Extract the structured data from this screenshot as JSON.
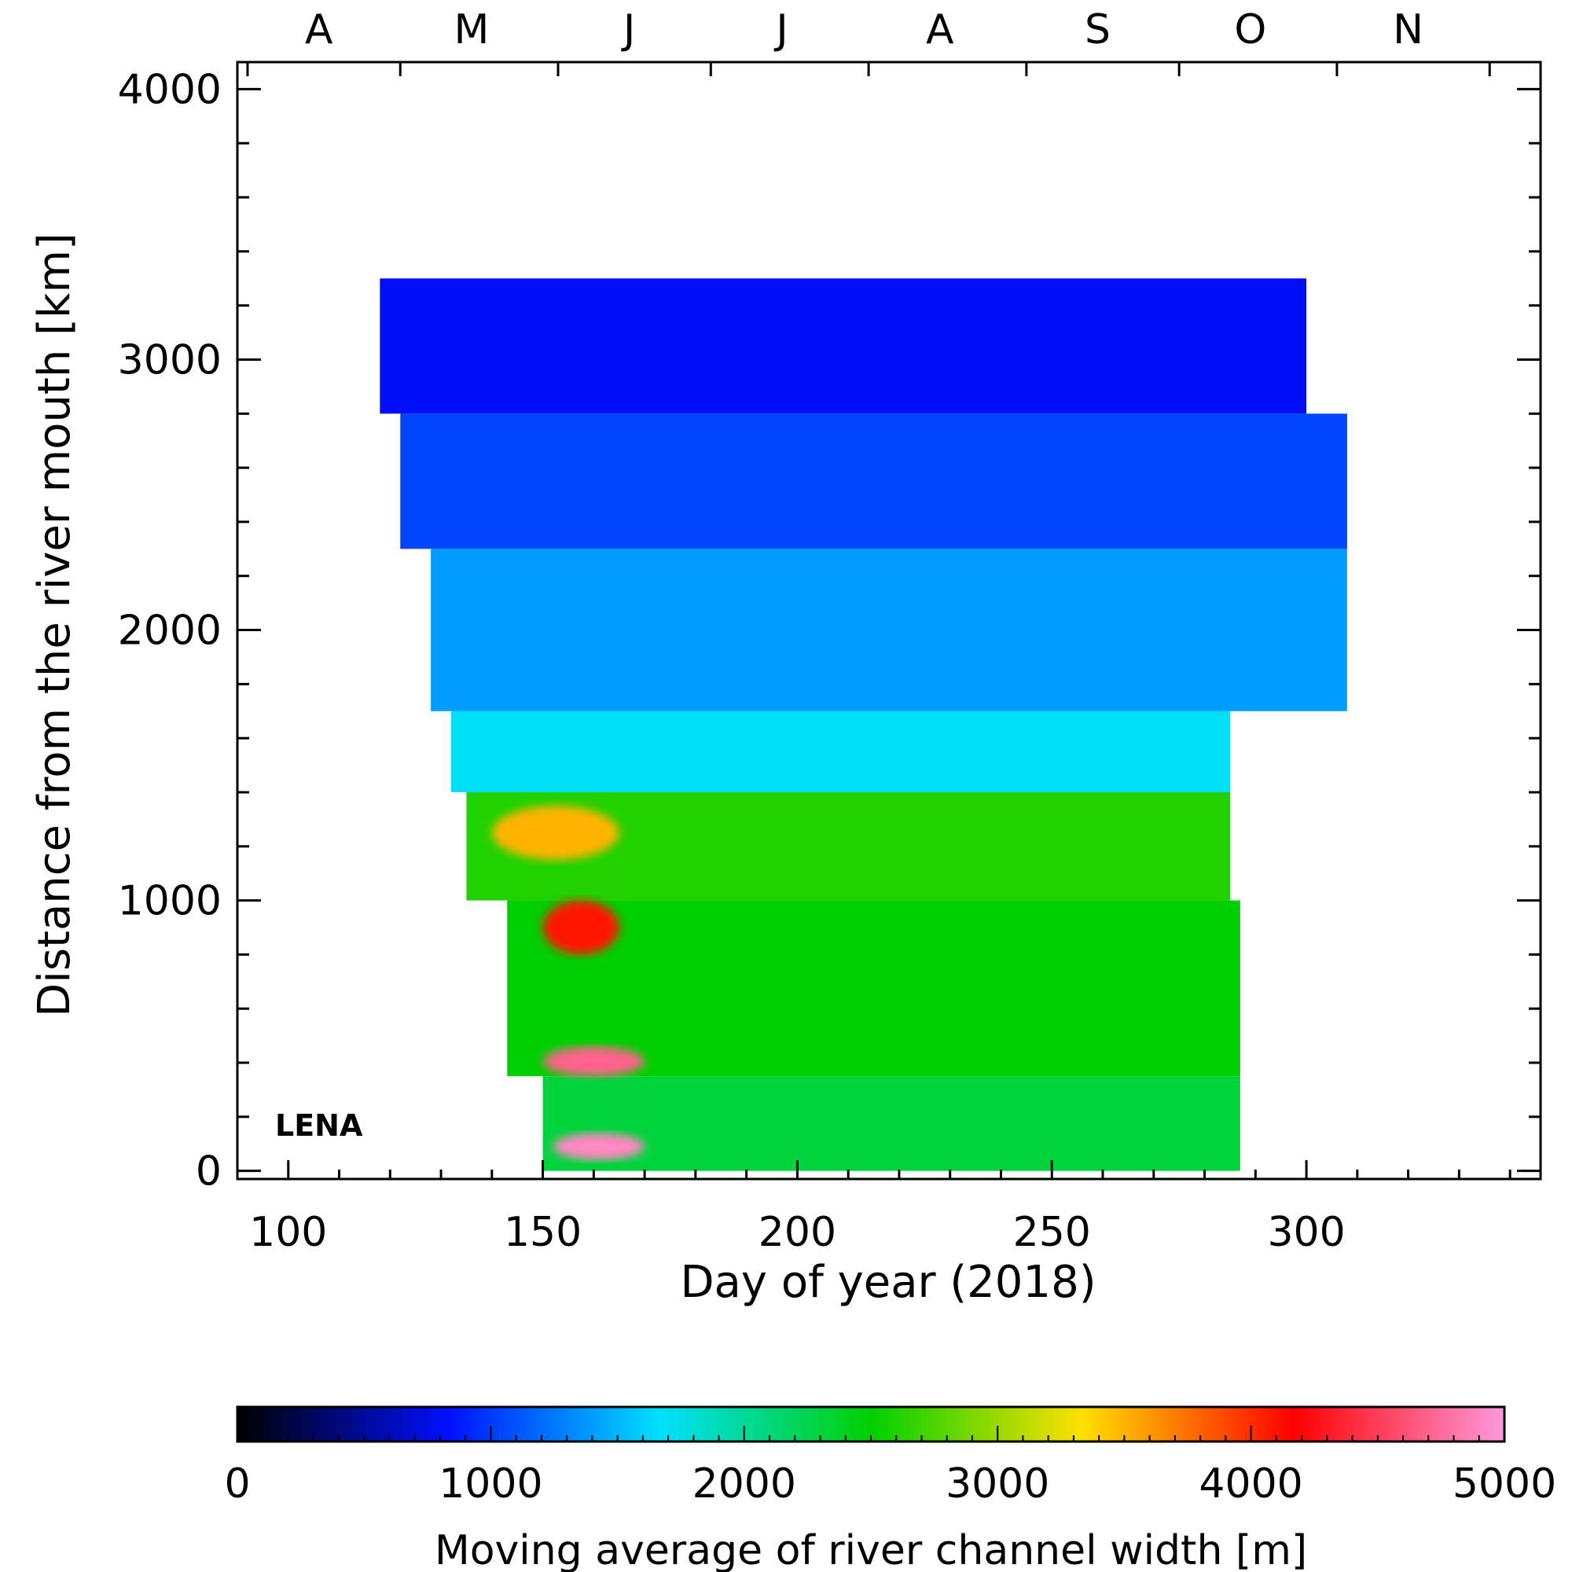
{
  "chart_data": {
    "type": "heatmap",
    "panel_label": "LENA",
    "xlabel": "Day of year (2018)",
    "ylabel": "Distance from the river mouth [km]",
    "xlim": [
      90,
      346
    ],
    "ylim": [
      -30,
      4100
    ],
    "x_ticks": [
      100,
      150,
      200,
      250,
      300
    ],
    "y_ticks": [
      0,
      1000,
      2000,
      3000,
      4000
    ],
    "month_labels": [
      {
        "label": "A",
        "day": 106
      },
      {
        "label": "M",
        "day": 136
      },
      {
        "label": "J",
        "day": 167
      },
      {
        "label": "J",
        "day": 197
      },
      {
        "label": "A",
        "day": 228
      },
      {
        "label": "S",
        "day": 259
      },
      {
        "label": "O",
        "day": 289
      },
      {
        "label": "N",
        "day": 320
      }
    ],
    "colorbar": {
      "label": "Moving average of river channel width [m]",
      "min": 0,
      "max": 5000,
      "ticks": [
        0,
        1000,
        2000,
        3000,
        4000,
        5000
      ],
      "colors": [
        "#000000",
        "#0010ff",
        "#00e0ff",
        "#00d000",
        "#ffe000",
        "#ff0000",
        "#ff99dd"
      ]
    },
    "features": [
      {
        "x_from": 152,
        "x_to": 170,
        "y_from": 40,
        "y_to": 140,
        "value": 4900
      },
      {
        "x_from": 150,
        "x_to": 170,
        "y_from": 350,
        "y_to": 460,
        "value": 4700
      },
      {
        "x_from": 150,
        "x_to": 165,
        "y_from": 800,
        "y_to": 1000,
        "value": 4100
      },
      {
        "x_from": 140,
        "x_to": 165,
        "y_from": 1150,
        "y_to": 1350,
        "value": 3500
      }
    ],
    "regions": [
      {
        "x_from": 150,
        "x_to": 287,
        "y_from": 0,
        "y_to": 350,
        "value": 2300
      },
      {
        "x_from": 143,
        "x_to": 287,
        "y_from": 350,
        "y_to": 1000,
        "value": 2500
      },
      {
        "x_from": 135,
        "x_to": 285,
        "y_from": 1000,
        "y_to": 1400,
        "value": 2600
      },
      {
        "x_from": 132,
        "x_to": 285,
        "y_from": 1400,
        "y_to": 1700,
        "value": 1700
      },
      {
        "x_from": 128,
        "x_to": 308,
        "y_from": 1700,
        "y_to": 2300,
        "value": 1400
      },
      {
        "x_from": 122,
        "x_to": 308,
        "y_from": 2300,
        "y_to": 2800,
        "value": 1050
      },
      {
        "x_from": 118,
        "x_to": 300,
        "y_from": 2800,
        "y_to": 3300,
        "value": 800
      }
    ]
  }
}
